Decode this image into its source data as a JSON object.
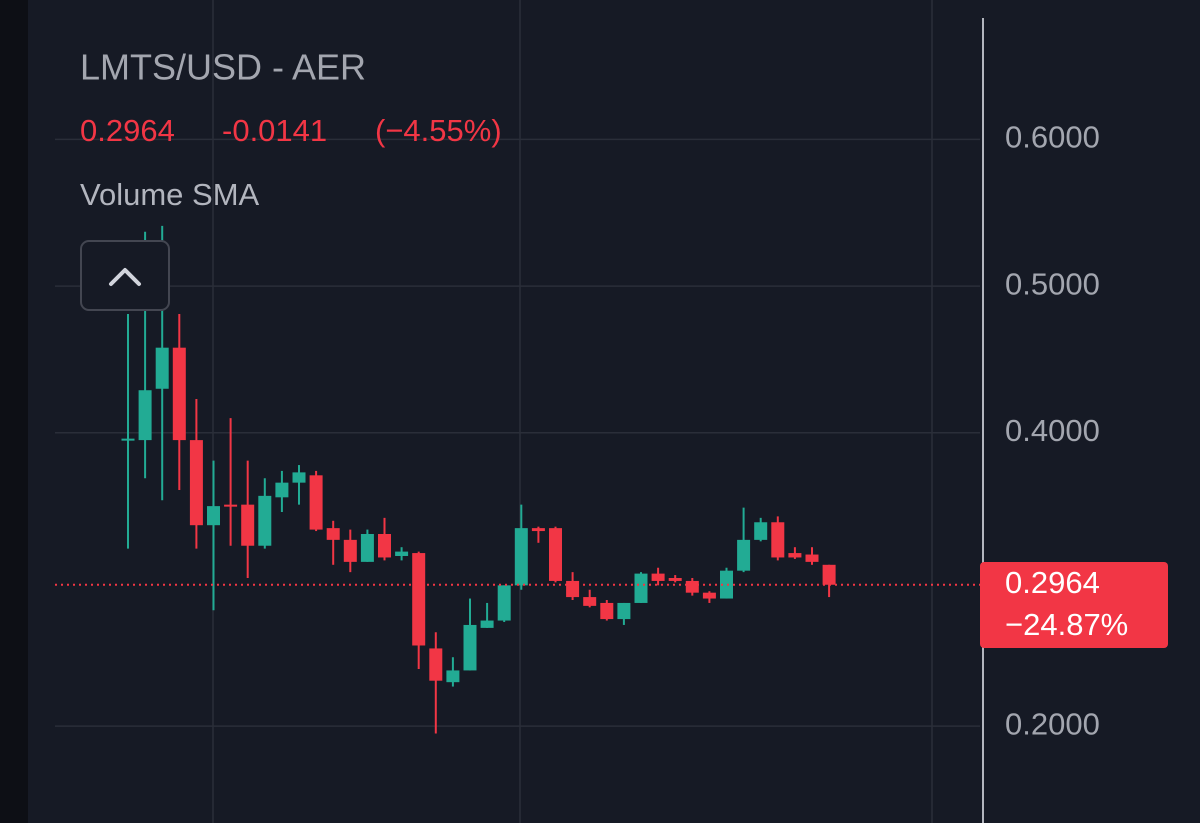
{
  "header": {
    "title": "LMTS/USD - AER",
    "change_percent": "(−4.55%)",
    "indicator": "Volume SMA",
    "change_label": "−24.87%"
  },
  "chart_data": {
    "type": "candlestick",
    "last_price": 0.2964,
    "change": -0.0141,
    "ylim": [
      0.134,
      0.695
    ],
    "yticks": [
      {
        "value": 0.6,
        "label": "0.6000"
      },
      {
        "value": 0.5,
        "label": "0.5000"
      },
      {
        "value": 0.4,
        "label": "0.4000"
      },
      {
        "value": 0.2,
        "label": "0.2000"
      }
    ],
    "grid": true,
    "up_color": "#22ab94",
    "down_color": "#f23645",
    "open": [
      0.395,
      0.395,
      0.43,
      0.458,
      0.395,
      0.337,
      0.351,
      0.351,
      0.323,
      0.356,
      0.366,
      0.371,
      0.335,
      0.327,
      0.312,
      0.331,
      0.316,
      0.318,
      0.253,
      0.23,
      0.238,
      0.267,
      0.272,
      0.296,
      0.335,
      0.335,
      0.299,
      0.288,
      0.284,
      0.273,
      0.284,
      0.304,
      0.301,
      0.299,
      0.291,
      0.287,
      0.306,
      0.327,
      0.339,
      0.318,
      0.317,
      0.31
    ],
    "high": [
      0.481,
      0.537,
      0.541,
      0.481,
      0.423,
      0.381,
      0.41,
      0.381,
      0.369,
      0.374,
      0.378,
      0.374,
      0.34,
      0.334,
      0.334,
      0.342,
      0.322,
      0.319,
      0.264,
      0.247,
      0.287,
      0.284,
      0.296,
      0.351,
      0.336,
      0.336,
      0.305,
      0.293,
      0.286,
      0.284,
      0.305,
      0.308,
      0.303,
      0.301,
      0.292,
      0.308,
      0.349,
      0.342,
      0.343,
      0.322,
      0.322,
      0.31
    ],
    "low": [
      0.321,
      0.369,
      0.354,
      0.361,
      0.321,
      0.279,
      0.323,
      0.301,
      0.321,
      0.346,
      0.351,
      0.333,
      0.31,
      0.305,
      0.312,
      0.313,
      0.313,
      0.239,
      0.195,
      0.227,
      0.238,
      0.267,
      0.271,
      0.293,
      0.325,
      0.298,
      0.286,
      0.281,
      0.272,
      0.269,
      0.284,
      0.296,
      0.298,
      0.289,
      0.284,
      0.287,
      0.305,
      0.326,
      0.313,
      0.314,
      0.31,
      0.288
    ],
    "close": [
      0.396,
      0.429,
      0.458,
      0.395,
      0.337,
      0.35,
      0.35,
      0.323,
      0.357,
      0.366,
      0.373,
      0.334,
      0.327,
      0.312,
      0.331,
      0.315,
      0.319,
      0.255,
      0.231,
      0.238,
      0.269,
      0.272,
      0.296,
      0.335,
      0.333,
      0.299,
      0.288,
      0.282,
      0.273,
      0.284,
      0.304,
      0.299,
      0.299,
      0.291,
      0.287,
      0.306,
      0.327,
      0.339,
      0.315,
      0.315,
      0.312,
      0.2964
    ]
  }
}
